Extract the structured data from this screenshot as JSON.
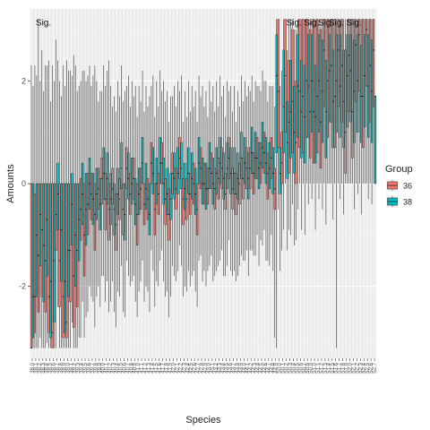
{
  "chart_data": {
    "type": "boxplot",
    "xlabel": "Species",
    "ylabel": "Amounts",
    "ylim": [
      -3.4,
      3.4
    ],
    "yticks": [
      -2,
      0,
      2
    ],
    "grid": true,
    "legend": {
      "title": "Group",
      "placement": "right",
      "entries": [
        {
          "name": "36",
          "color": "#F8766D"
        },
        {
          "name": "38",
          "color": "#00BFC4"
        }
      ]
    },
    "annotations": [
      {
        "text": "Sig.",
        "category_index": 1
      },
      {
        "text": "Sig.",
        "category_index": 72
      },
      {
        "text": "Sig.",
        "category_index": 77
      },
      {
        "text": "Sig.",
        "category_index": 81
      },
      {
        "text": "Sig.",
        "category_index": 84
      },
      {
        "text": "Sig.",
        "category_index": 89
      }
    ],
    "category_count": 98,
    "categories": [
      "38.0",
      "38.1",
      "38.2",
      "38.3",
      "38.4",
      "38.5",
      "38.6",
      "38.7",
      "38.8",
      "38.9",
      "39.0",
      "39.1",
      "39.2",
      "39.3",
      "39.4",
      "39.5",
      "39.6",
      "39.7",
      "39.8",
      "39.9",
      "40.0",
      "40.1",
      "40.2",
      "40.3",
      "40.4",
      "40.5",
      "40.6",
      "40.7",
      "40.8",
      "40.9",
      "41.0",
      "41.1",
      "41.2",
      "41.3",
      "41.4",
      "41.5",
      "41.6",
      "41.7",
      "41.8",
      "41.9",
      "42.0",
      "42.1",
      "42.2",
      "42.3",
      "42.4",
      "42.5",
      "42.6",
      "42.7",
      "42.8",
      "42.9",
      "43.0",
      "43.1",
      "43.2",
      "43.3",
      "43.4",
      "43.5",
      "43.6",
      "43.7",
      "43.8",
      "43.9",
      "44.0",
      "44.1",
      "44.2",
      "44.3",
      "44.4",
      "44.5",
      "44.6",
      "44.7",
      "44.8",
      "44.9",
      "50.0",
      "50.1",
      "50.2",
      "50.3",
      "50.4",
      "50.5",
      "50.6",
      "50.7",
      "50.8",
      "50.9",
      "51.0",
      "51.1",
      "51.2",
      "51.3",
      "51.4",
      "51.5",
      "51.6",
      "51.7",
      "51.8",
      "51.9",
      "52.0",
      "52.1",
      "52.2",
      "52.3",
      "52.4",
      "52.5",
      "52.6",
      "52.7"
    ],
    "series": [
      {
        "name": "36",
        "color": "#F8766D",
        "median": [
          -3.2,
          -2.2,
          -1.4,
          -0.9,
          -1.5,
          -2.2,
          -2.9,
          -0.6,
          -1.5,
          -2.2,
          -2.7,
          -1.3,
          -1.8,
          -1.3,
          -0.5,
          -1.0,
          -0.4,
          -0.2,
          -0.6,
          -0.1,
          0.1,
          -0.3,
          -0.5,
          -0.1,
          -0.8,
          -0.3,
          -0.5,
          0.3,
          -0.2,
          0.1,
          -0.6,
          -0.1,
          -0.4,
          -0.3,
          0.4,
          -0.5,
          -0.2,
          0.4,
          -0.3,
          -0.6,
          0.2,
          -0.1,
          0.5,
          -0.3,
          -0.3,
          -0.2,
          0.0,
          -0.5,
          0.3,
          0.0,
          -0.1,
          0.2,
          -0.1,
          0.1,
          0.3,
          -0.2,
          0.5,
          -0.1,
          -0.2,
          0.0,
          0.1,
          0.3,
          0.3,
          0.2,
          0.5,
          0.4,
          0.6,
          0.2,
          0.5,
          -0.1,
          1.8,
          0.4,
          2.1,
          1.2,
          1.6,
          0.8,
          1.8,
          1.7,
          2.0,
          1.4,
          1.4,
          1.7,
          1.2,
          2.6,
          2.0,
          2.3,
          1.7,
          2.6,
          2.3,
          1.0,
          2.5,
          1.4,
          2.7,
          2.9,
          1.7,
          3.0,
          2.3,
          2.6
        ],
        "q1": [
          -3.2,
          -2.9,
          -2.5,
          -2.2,
          -2.5,
          -2.9,
          -3.2,
          -1.3,
          -2.4,
          -3.0,
          -3.0,
          -2.3,
          -2.8,
          -2.4,
          -1.1,
          -1.8,
          -1.0,
          -0.7,
          -1.3,
          -0.5,
          -0.4,
          -0.9,
          -1.1,
          -0.4,
          -1.3,
          -0.7,
          -1.0,
          -0.1,
          -0.6,
          -0.3,
          -1.2,
          -0.5,
          -0.8,
          -0.7,
          0.0,
          -1.0,
          -0.6,
          0.0,
          -0.8,
          -1.1,
          -0.2,
          -0.5,
          0.1,
          -0.8,
          -0.7,
          -0.6,
          -0.4,
          -1.0,
          -0.1,
          -0.4,
          -0.4,
          -0.1,
          -0.5,
          -0.3,
          -0.1,
          -0.5,
          0.1,
          -0.5,
          -0.6,
          -0.4,
          -0.3,
          -0.1,
          -0.1,
          -0.2,
          0.1,
          0.0,
          0.2,
          -0.3,
          0.1,
          -0.5,
          0.7,
          0.0,
          1.0,
          0.2,
          0.6,
          0.0,
          0.7,
          0.6,
          0.9,
          0.5,
          0.4,
          0.6,
          0.3,
          1.5,
          0.9,
          1.2,
          0.7,
          1.5,
          1.2,
          0.2,
          1.4,
          0.5,
          1.6,
          1.8,
          0.7,
          1.9,
          1.2,
          1.5
        ],
        "q3": [
          0.0,
          -0.2,
          0.0,
          0.0,
          0.0,
          0.0,
          0.0,
          0.0,
          0.0,
          0.0,
          0.0,
          0.0,
          0.0,
          0.0,
          0.1,
          0.0,
          0.2,
          0.2,
          0.0,
          0.3,
          0.5,
          0.2,
          0.0,
          0.3,
          -0.2,
          0.1,
          0.0,
          0.7,
          0.2,
          0.5,
          0.0,
          0.3,
          0.0,
          0.1,
          0.8,
          0.0,
          0.2,
          0.8,
          0.1,
          -0.1,
          0.6,
          0.3,
          0.9,
          0.1,
          0.1,
          0.2,
          0.4,
          0.0,
          0.7,
          0.4,
          0.3,
          0.6,
          0.3,
          0.5,
          0.7,
          0.2,
          0.9,
          0.3,
          0.2,
          0.4,
          0.5,
          0.7,
          0.7,
          0.6,
          0.9,
          0.8,
          1.0,
          0.6,
          0.9,
          0.3,
          3.2,
          1.0,
          3.2,
          2.4,
          3.0,
          2.0,
          3.2,
          3.2,
          3.2,
          3.0,
          3.2,
          3.2,
          3.0,
          3.2,
          3.2,
          3.2,
          3.2,
          3.2,
          3.2,
          2.6,
          3.2,
          3.2,
          3.2,
          3.2,
          3.2,
          3.2,
          3.2,
          3.2
        ],
        "lower": [
          -3.2,
          -3.2,
          -3.2,
          -3.2,
          -3.2,
          -3.2,
          -3.2,
          -3.2,
          -3.2,
          -3.2,
          -3.2,
          -3.2,
          -3.2,
          -3.2,
          -3.0,
          -3.0,
          -2.5,
          -2.2,
          -2.8,
          -2.0,
          -1.8,
          -2.3,
          -2.5,
          -1.9,
          -2.8,
          -2.2,
          -2.5,
          -1.5,
          -2.0,
          -1.8,
          -2.6,
          -1.9,
          -2.3,
          -2.1,
          -1.3,
          -2.4,
          -2.0,
          -1.3,
          -2.2,
          -2.6,
          -1.6,
          -1.9,
          -1.2,
          -2.2,
          -2.1,
          -2.0,
          -1.7,
          -2.4,
          -1.4,
          -1.7,
          -1.7,
          -1.4,
          -1.8,
          -1.6,
          -1.3,
          -1.8,
          -1.1,
          -1.8,
          -1.9,
          -1.6,
          -1.5,
          -1.3,
          -1.3,
          -1.4,
          -1.0,
          -1.1,
          -0.9,
          -1.5,
          -1.0,
          -3.0,
          -0.5,
          -1.3,
          0.0,
          -0.9,
          -0.4,
          -1.1,
          0.0,
          0.0,
          0.0,
          0.0,
          0.0,
          0.0,
          0.0,
          0.0,
          0.0,
          0.0,
          0.0,
          0.0,
          0.0,
          0.0,
          0.0,
          0.0,
          0.0,
          0.0,
          0.0,
          0.0,
          0.0,
          0.0
        ],
        "upper": [
          2.3,
          2.3,
          3.2,
          2.6,
          2.3,
          2.4,
          2.3,
          2.8,
          2.0,
          2.3,
          2.4,
          2.2,
          2.5,
          1.8,
          2.0,
          2.2,
          2.1,
          1.9,
          2.3,
          1.6,
          1.8,
          1.9,
          2.4,
          1.5,
          1.4,
          1.7,
          1.6,
          1.9,
          1.5,
          1.7,
          1.3,
          1.6,
          1.4,
          1.5,
          1.9,
          1.3,
          1.5,
          1.8,
          1.6,
          1.2,
          1.7,
          1.5,
          1.8,
          1.2,
          1.3,
          1.4,
          1.5,
          1.2,
          1.7,
          1.5,
          1.3,
          1.6,
          1.4,
          1.5,
          1.7,
          1.3,
          1.8,
          1.4,
          1.2,
          1.5,
          1.6,
          1.7,
          1.8,
          1.6,
          1.9,
          1.8,
          2.0,
          1.6,
          1.9,
          1.5,
          3.2,
          2.2,
          3.2,
          3.2,
          3.2,
          3.0,
          3.2,
          3.2,
          3.2,
          3.2,
          3.2,
          3.2,
          3.2,
          3.2,
          3.2,
          3.2,
          3.2,
          3.2,
          3.2,
          3.2,
          3.2,
          3.2,
          3.2,
          3.2,
          3.2,
          3.2,
          3.2,
          3.2
        ]
      },
      {
        "name": "38",
        "color": "#00BFC4",
        "median": [
          -2.2,
          -1.0,
          -0.6,
          -1.2,
          -0.7,
          -1.9,
          -1.5,
          -0.2,
          -0.9,
          -1.9,
          -1.3,
          -0.4,
          -1.0,
          -0.7,
          -0.2,
          -0.5,
          0.0,
          -0.3,
          -0.2,
          -0.4,
          0.2,
          0.1,
          -0.3,
          -0.5,
          -0.2,
          0.3,
          -0.6,
          0.1,
          0.0,
          -0.4,
          -0.2,
          0.4,
          -0.1,
          -0.6,
          0.2,
          0.0,
          0.4,
          0.0,
          -0.2,
          -0.3,
          0.1,
          0.2,
          0.3,
          -0.1,
          0.2,
          0.1,
          -0.2,
          0.4,
          0.0,
          -0.1,
          0.3,
          0.0,
          0.2,
          0.4,
          0.1,
          0.3,
          0.2,
          0.2,
          0.1,
          0.5,
          0.4,
          0.1,
          0.6,
          0.5,
          0.3,
          0.7,
          0.4,
          0.3,
          0.2,
          2.1,
          0.2,
          1.5,
          0.8,
          1.4,
          1.0,
          1.9,
          1.4,
          1.3,
          1.9,
          2.0,
          1.3,
          2.0,
          1.8,
          1.4,
          2.2,
          1.6,
          2.0,
          1.9,
          1.6,
          2.1,
          2.2,
          1.8,
          2.0,
          1.7,
          2.1,
          1.9,
          1.8,
          1.7
        ],
        "q1": [
          -3.0,
          -2.2,
          -1.6,
          -2.3,
          -1.8,
          -3.0,
          -2.7,
          -0.9,
          -1.9,
          -2.9,
          -2.2,
          -1.2,
          -2.0,
          -1.5,
          -0.8,
          -1.2,
          -0.5,
          -0.8,
          -0.7,
          -0.9,
          -0.3,
          -0.4,
          -0.8,
          -1.0,
          -0.6,
          -0.1,
          -1.1,
          -0.3,
          -0.4,
          -0.8,
          -0.6,
          0.0,
          -0.5,
          -1.0,
          -0.2,
          -0.4,
          0.0,
          -0.4,
          -0.6,
          -0.7,
          -0.3,
          -0.2,
          -0.1,
          -0.5,
          -0.2,
          -0.3,
          -0.6,
          0.0,
          -0.4,
          -0.5,
          -0.1,
          -0.4,
          -0.2,
          0.0,
          -0.3,
          -0.1,
          -0.2,
          -0.2,
          -0.3,
          0.1,
          0.0,
          -0.3,
          0.2,
          0.1,
          -0.1,
          0.3,
          0.0,
          -0.1,
          -0.2,
          0.6,
          -0.2,
          0.6,
          0.1,
          0.5,
          0.2,
          0.9,
          0.5,
          0.4,
          0.9,
          1.0,
          0.4,
          1.0,
          0.8,
          0.5,
          1.2,
          0.7,
          1.0,
          0.9,
          0.7,
          1.1,
          1.2,
          0.8,
          1.0,
          0.8,
          1.1,
          0.9,
          0.8,
          0.0
        ],
        "q3": [
          0.0,
          0.0,
          0.0,
          0.0,
          0.0,
          0.0,
          0.0,
          0.4,
          0.0,
          0.0,
          0.0,
          0.2,
          0.0,
          0.0,
          0.4,
          0.2,
          0.5,
          0.2,
          0.3,
          0.1,
          0.7,
          0.6,
          0.2,
          0.0,
          0.3,
          0.8,
          0.0,
          0.6,
          0.5,
          0.1,
          0.3,
          0.9,
          0.4,
          0.0,
          0.7,
          0.5,
          0.9,
          0.5,
          0.3,
          0.2,
          0.6,
          0.7,
          0.8,
          0.4,
          0.7,
          0.6,
          0.3,
          0.9,
          0.5,
          0.4,
          0.8,
          0.5,
          0.7,
          0.9,
          0.6,
          0.8,
          0.7,
          0.7,
          0.6,
          1.0,
          0.9,
          0.6,
          1.1,
          1.0,
          0.8,
          1.2,
          0.9,
          0.8,
          0.7,
          2.9,
          0.7,
          2.6,
          1.6,
          2.4,
          1.9,
          2.9,
          2.4,
          2.3,
          2.9,
          2.9,
          2.3,
          2.9,
          2.8,
          2.4,
          2.9,
          2.6,
          2.9,
          2.9,
          2.6,
          2.9,
          2.9,
          2.8,
          2.9,
          2.7,
          2.9,
          2.9,
          2.8,
          1.7
        ],
        "lower": [
          -3.2,
          -3.2,
          -3.0,
          -3.2,
          -3.1,
          -3.2,
          -3.2,
          -2.4,
          -3.2,
          -3.2,
          -3.2,
          -2.7,
          -3.2,
          -3.0,
          -2.3,
          -2.6,
          -2.0,
          -2.3,
          -2.2,
          -2.4,
          -1.8,
          -1.9,
          -2.3,
          -2.5,
          -2.1,
          -1.6,
          -2.6,
          -1.8,
          -1.9,
          -2.3,
          -2.1,
          -1.5,
          -2.0,
          -2.5,
          -1.7,
          -1.9,
          -1.5,
          -1.9,
          -2.1,
          -2.2,
          -1.8,
          -1.7,
          -1.6,
          -2.0,
          -1.7,
          -1.8,
          -2.1,
          -1.5,
          -1.9,
          -2.0,
          -1.6,
          -1.9,
          -1.7,
          -1.5,
          -1.8,
          -1.6,
          -1.7,
          -1.7,
          -1.8,
          -1.4,
          -1.5,
          -1.8,
          -1.3,
          -1.4,
          -1.6,
          -1.2,
          -1.5,
          -1.6,
          -1.7,
          -3.2,
          -1.7,
          -0.9,
          -1.3,
          -1.0,
          -1.2,
          -0.5,
          -0.9,
          -1.0,
          -0.4,
          -0.3,
          -0.9,
          -0.3,
          -0.5,
          -0.8,
          0.0,
          -0.7,
          -3.2,
          -0.3,
          -0.6,
          0.0,
          0.0,
          -0.5,
          -0.2,
          -0.6,
          0.0,
          -0.3,
          -0.4,
          0.0
        ],
        "upper": [
          1.9,
          2.1,
          2.0,
          1.8,
          2.3,
          1.6,
          2.0,
          2.4,
          1.7,
          1.9,
          2.2,
          2.1,
          2.3,
          1.9,
          2.2,
          2.0,
          2.3,
          2.1,
          2.0,
          1.8,
          2.3,
          2.2,
          1.9,
          1.7,
          2.0,
          2.3,
          1.8,
          2.1,
          2.0,
          1.9,
          1.9,
          2.2,
          1.9,
          1.7,
          2.1,
          2.0,
          2.2,
          2.0,
          1.8,
          1.7,
          1.9,
          2.0,
          2.1,
          1.8,
          2.0,
          1.9,
          1.8,
          2.1,
          1.9,
          1.8,
          2.0,
          1.9,
          2.0,
          2.1,
          1.9,
          2.0,
          1.9,
          1.9,
          1.8,
          2.1,
          2.0,
          1.9,
          2.1,
          2.0,
          1.9,
          2.2,
          2.0,
          1.9,
          1.9,
          3.2,
          1.9,
          3.2,
          2.6,
          3.2,
          3.0,
          3.2,
          3.2,
          3.2,
          3.2,
          3.2,
          3.2,
          3.2,
          3.2,
          3.2,
          3.2,
          3.2,
          3.2,
          3.2,
          3.2,
          3.2,
          3.2,
          3.2,
          3.2,
          3.2,
          3.2,
          3.2,
          3.2,
          1.7
        ]
      }
    ]
  }
}
